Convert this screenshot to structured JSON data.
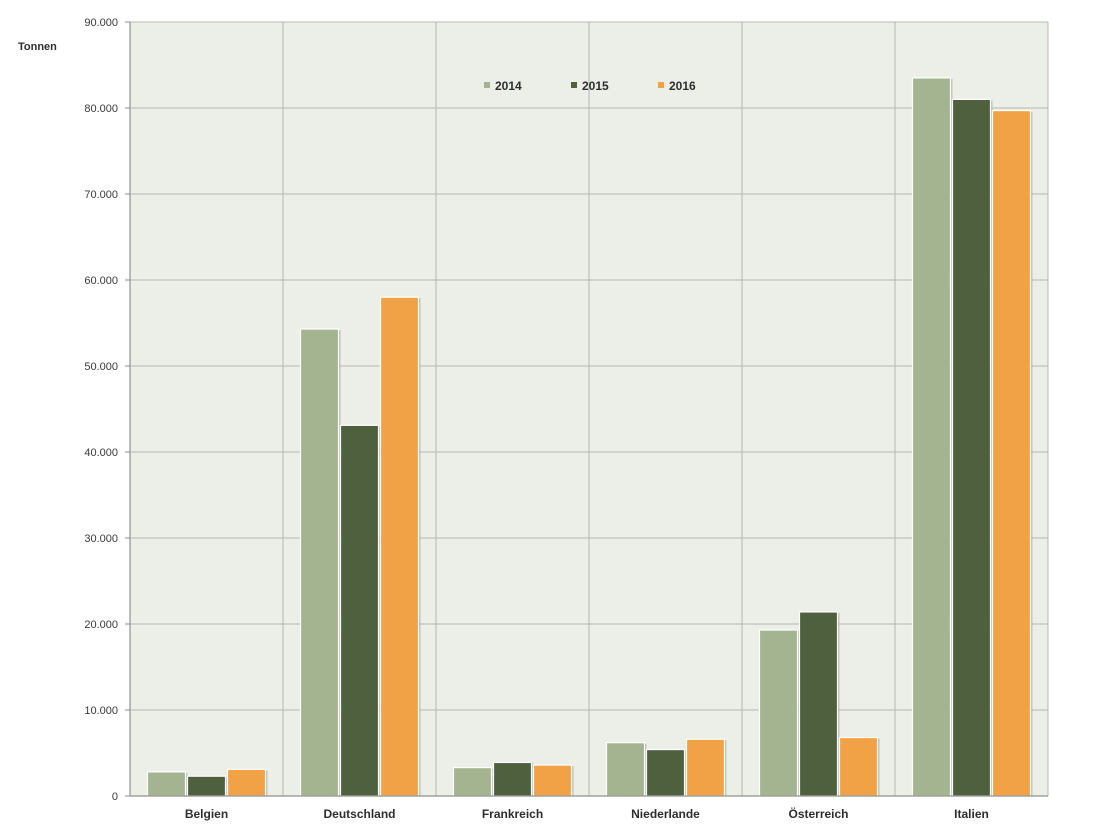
{
  "colors": {
    "background": "#eceee8",
    "grid": "#b5b8b2",
    "axis": "#8f928c",
    "series": [
      "#a4b490",
      "#4f603f",
      "#f2a246"
    ]
  },
  "chart_data": {
    "type": "bar",
    "title": "",
    "xlabel": "",
    "ylabel": "Tonnen",
    "ylim": [
      0,
      90000
    ],
    "yticks": [
      0,
      10000,
      20000,
      30000,
      40000,
      50000,
      60000,
      70000,
      80000,
      90000
    ],
    "ytick_labels": [
      "0",
      "10.000",
      "20.000",
      "30.000",
      "40.000",
      "50.000",
      "60.000",
      "70.000",
      "80.000",
      "90.000"
    ],
    "grid": true,
    "legend_position": "top-center",
    "categories": [
      "Belgien",
      "Deutschland",
      "Frankreich",
      "Niederlande",
      "Österreich",
      "Italien"
    ],
    "series": [
      {
        "name": "2014",
        "color": "#a4b490",
        "values": [
          2800,
          54300,
          3300,
          6200,
          19300,
          83500
        ]
      },
      {
        "name": "2015",
        "color": "#4f603f",
        "values": [
          2300,
          43100,
          3900,
          5400,
          21400,
          81000
        ]
      },
      {
        "name": "2016",
        "color": "#f2a246",
        "values": [
          3100,
          58000,
          3600,
          6600,
          6800,
          79700
        ]
      }
    ]
  }
}
